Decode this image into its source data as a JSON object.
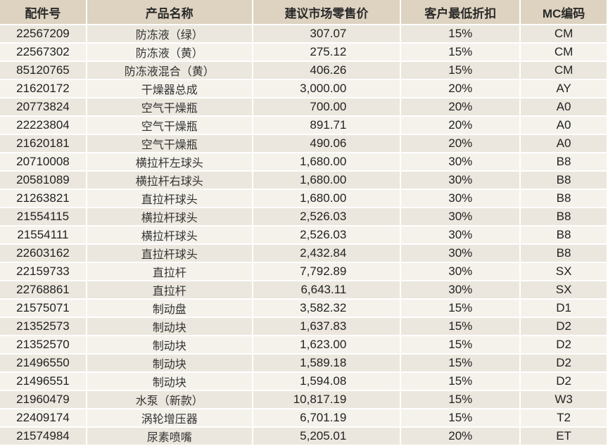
{
  "headers": [
    "配件号",
    "产品名称",
    "建议市场零售价",
    "客户最低折扣",
    "MC编码"
  ],
  "rows": [
    [
      "22567209",
      "防冻液（绿）",
      "307.07",
      "15%",
      "CM"
    ],
    [
      "22567302",
      "防冻液（黄）",
      "275.12",
      "15%",
      "CM"
    ],
    [
      "85120765",
      "防冻液混合（黄）",
      "406.26",
      "15%",
      "CM"
    ],
    [
      "21620172",
      "干燥器总成",
      "3,000.00",
      "20%",
      "AY"
    ],
    [
      "20773824",
      "空气干燥瓶",
      "700.00",
      "20%",
      "A0"
    ],
    [
      "22223804",
      "空气干燥瓶",
      "891.71",
      "20%",
      "A0"
    ],
    [
      "21620181",
      "空气干燥瓶",
      "490.06",
      "20%",
      "A0"
    ],
    [
      "20710008",
      "横拉杆左球头",
      "1,680.00",
      "30%",
      "B8"
    ],
    [
      "20581089",
      "横拉杆右球头",
      "1,680.00",
      "30%",
      "B8"
    ],
    [
      "21263821",
      "直拉杆球头",
      "1,680.00",
      "30%",
      "B8"
    ],
    [
      "21554115",
      "横拉杆球头",
      "2,526.03",
      "30%",
      "B8"
    ],
    [
      "21554111",
      "横拉杆球头",
      "2,526.03",
      "30%",
      "B8"
    ],
    [
      "22603162",
      "直拉杆球头",
      "2,432.84",
      "30%",
      "B8"
    ],
    [
      "22159733",
      "直拉杆",
      "7,792.89",
      "30%",
      "SX"
    ],
    [
      "22768861",
      "直拉杆",
      "6,643.11",
      "30%",
      "SX"
    ],
    [
      "21575071",
      "制动盘",
      "3,582.32",
      "15%",
      "D1"
    ],
    [
      "21352573",
      "制动块",
      "1,637.83",
      "15%",
      "D2"
    ],
    [
      "21352570",
      "制动块",
      "1,623.00",
      "15%",
      "D2"
    ],
    [
      "21496550",
      "制动块",
      "1,589.18",
      "15%",
      "D2"
    ],
    [
      "21496551",
      "制动块",
      "1,594.08",
      "15%",
      "D2"
    ],
    [
      "21960479",
      "水泵（新款）",
      "10,817.19",
      "15%",
      "W3"
    ],
    [
      "22409174",
      "涡轮增压器",
      "6,701.19",
      "15%",
      "T2"
    ],
    [
      "21574984",
      "尿素喷嘴",
      "5,205.01",
      "20%",
      "ET"
    ]
  ]
}
